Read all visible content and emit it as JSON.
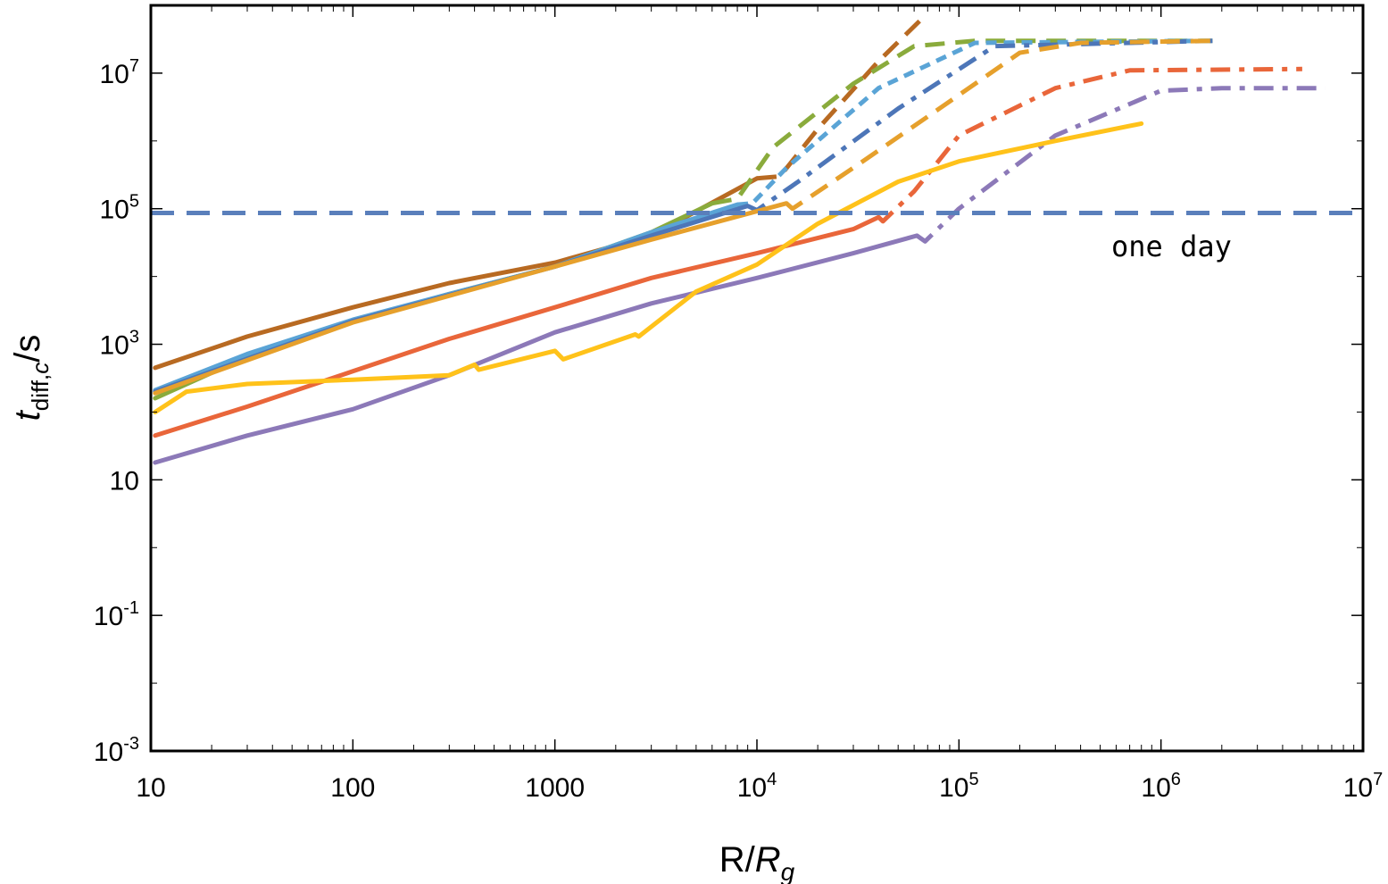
{
  "chart_data": {
    "type": "line",
    "xscale": "log",
    "yscale": "log",
    "xlim": [
      10,
      10000000
    ],
    "ylim": [
      0.001,
      100000000
    ],
    "grid": false,
    "xlabel": {
      "main": "R/",
      "italic": "R",
      "sub": "g"
    },
    "ylabel": {
      "italic": "t",
      "sub": "diff,",
      "sub_italic": "c",
      "tail": "/s"
    },
    "x_ticks": [
      {
        "value": 10,
        "base": "10",
        "exp": ""
      },
      {
        "value": 100,
        "base": "100",
        "exp": ""
      },
      {
        "value": 1000,
        "base": "1000",
        "exp": ""
      },
      {
        "value": 10000,
        "base": "10",
        "exp": "4"
      },
      {
        "value": 100000,
        "base": "10",
        "exp": "5"
      },
      {
        "value": 1000000,
        "base": "10",
        "exp": "6"
      },
      {
        "value": 10000000,
        "base": "10",
        "exp": "7"
      }
    ],
    "y_ticks": [
      {
        "value": 0.001,
        "base": "10",
        "exp": "-3"
      },
      {
        "value": 0.1,
        "base": "10",
        "exp": "-1"
      },
      {
        "value": 10,
        "base": "10",
        "exp": ""
      },
      {
        "value": 1000,
        "base": "10",
        "exp": "3"
      },
      {
        "value": 100000,
        "base": "10",
        "exp": "5"
      },
      {
        "value": 10000000,
        "base": "10",
        "exp": "7"
      }
    ],
    "reference_line": {
      "y": 86400,
      "color": "#5a7fbb",
      "dash": "dashed",
      "label": "one day"
    },
    "series": [
      {
        "color": "#b86a22",
        "solid": [
          [
            10.5,
            450
          ],
          [
            30,
            1300
          ],
          [
            100,
            3500
          ],
          [
            300,
            8000
          ],
          [
            1000,
            16000
          ],
          [
            3000,
            40000
          ],
          [
            10000,
            280000
          ]
        ],
        "dashed": [
          [
            10000,
            280000
          ],
          [
            13000,
            300000
          ],
          [
            20000,
            1500000
          ],
          [
            40000,
            15000000
          ],
          [
            65000,
            62000000
          ]
        ],
        "dash": "dashed"
      },
      {
        "color": "#8aab3c",
        "solid": [
          [
            10.5,
            160
          ],
          [
            30,
            650
          ],
          [
            100,
            2200
          ],
          [
            300,
            5500
          ],
          [
            1000,
            14000
          ],
          [
            3000,
            45000
          ],
          [
            6000,
            120000
          ]
        ],
        "dashed": [
          [
            6000,
            120000
          ],
          [
            8000,
            140000
          ],
          [
            12000,
            800000
          ],
          [
            30000,
            7000000
          ],
          [
            60000,
            25000000
          ],
          [
            120000,
            30000000
          ],
          [
            1800000,
            30000000
          ]
        ],
        "dash": "dashed"
      },
      {
        "color": "#5aa4d6",
        "solid": [
          [
            10.5,
            210
          ],
          [
            30,
            720
          ],
          [
            100,
            2300
          ],
          [
            300,
            5500
          ],
          [
            1000,
            14000
          ],
          [
            3000,
            45000
          ],
          [
            8000,
            115000
          ]
        ],
        "dashed": [
          [
            8000,
            115000
          ],
          [
            9500,
            120000
          ],
          [
            14000,
            400000
          ],
          [
            40000,
            6000000
          ],
          [
            120000,
            28000000
          ],
          [
            1800000,
            30000000
          ]
        ],
        "dash": "dotted"
      },
      {
        "color": "#4d76b8",
        "solid": [
          [
            10.5,
            200
          ],
          [
            100,
            2200
          ],
          [
            1000,
            14000
          ],
          [
            3000,
            40000
          ],
          [
            9000,
            110000
          ]
        ],
        "dashed": [
          [
            9000,
            110000
          ],
          [
            10000,
            95000
          ],
          [
            16000,
            250000
          ],
          [
            50000,
            3000000
          ],
          [
            150000,
            25000000
          ],
          [
            1800000,
            30000000
          ]
        ],
        "dash": "dashdot"
      },
      {
        "color": "#e6a02c",
        "solid": [
          [
            10.5,
            190
          ],
          [
            100,
            2100
          ],
          [
            1000,
            14000
          ],
          [
            3000,
            35000
          ],
          [
            14000,
            120000
          ]
        ],
        "dashed": [
          [
            14000,
            120000
          ],
          [
            15000,
            100000
          ],
          [
            30000,
            400000
          ],
          [
            80000,
            3000000
          ],
          [
            200000,
            20000000
          ],
          [
            400000,
            28000000
          ],
          [
            1800000,
            30000000
          ]
        ],
        "dash": "dashed"
      },
      {
        "color": "#e9663a",
        "solid": [
          [
            10.5,
            45
          ],
          [
            30,
            120
          ],
          [
            100,
            400
          ],
          [
            300,
            1200
          ],
          [
            1000,
            3500
          ],
          [
            3000,
            9500
          ],
          [
            10000,
            22000
          ],
          [
            30000,
            50000
          ],
          [
            40000,
            75000
          ]
        ],
        "dashed": [
          [
            40000,
            75000
          ],
          [
            42000,
            65000
          ],
          [
            60000,
            180000
          ],
          [
            100000,
            1200000
          ],
          [
            300000,
            6000000
          ],
          [
            700000,
            11000000
          ],
          [
            5000000,
            11500000
          ]
        ],
        "dash": "dashdot"
      },
      {
        "color": "#8c79b8",
        "solid": [
          [
            10.5,
            18
          ],
          [
            30,
            45
          ],
          [
            100,
            110
          ],
          [
            300,
            350
          ],
          [
            1000,
            1500
          ],
          [
            3000,
            4000
          ],
          [
            10000,
            9500
          ],
          [
            30000,
            22000
          ],
          [
            62000,
            40000
          ]
        ],
        "dashed": [
          [
            62000,
            40000
          ],
          [
            68000,
            33000
          ],
          [
            100000,
            100000
          ],
          [
            300000,
            1200000
          ],
          [
            1000000,
            5500000
          ],
          [
            2000000,
            6000000
          ],
          [
            6500000,
            6000000
          ]
        ],
        "dash": "dashdot"
      },
      {
        "color": "#ffc21a",
        "solid": [
          [
            10.5,
            100
          ],
          [
            15,
            200
          ],
          [
            30,
            260
          ],
          [
            100,
            300
          ],
          [
            300,
            350
          ],
          [
            400,
            500
          ],
          [
            420,
            420
          ],
          [
            1000,
            800
          ],
          [
            1100,
            600
          ],
          [
            2500,
            1400
          ],
          [
            2600,
            1300
          ],
          [
            5000,
            6000
          ],
          [
            10000,
            15000
          ],
          [
            20000,
            60000
          ],
          [
            50000,
            250000
          ],
          [
            100000,
            500000
          ],
          [
            300000,
            1000000
          ],
          [
            800000,
            1800000
          ]
        ],
        "dashed": [],
        "dash": "dashdot"
      }
    ]
  }
}
